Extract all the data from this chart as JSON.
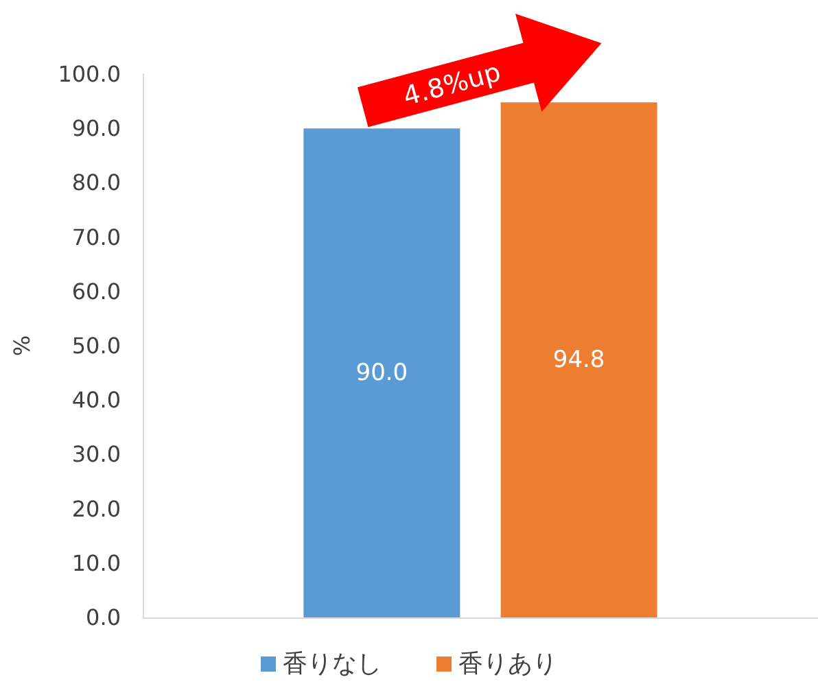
{
  "chart_data": {
    "type": "bar",
    "ylabel": "%",
    "categories": [
      null
    ],
    "series": [
      {
        "name": "香りなし",
        "color": "#5b9bd5",
        "values": [
          90.0
        ],
        "value_labels": [
          "90.0"
        ]
      },
      {
        "name": "香りあり",
        "color": "#ed7d31",
        "values": [
          94.8
        ],
        "value_labels": [
          "94.8"
        ]
      }
    ],
    "ylim": [
      0,
      100
    ],
    "yticks": [
      {
        "value": 0,
        "label": "0.0"
      },
      {
        "value": 10,
        "label": "10.0"
      },
      {
        "value": 20,
        "label": "20.0"
      },
      {
        "value": 30,
        "label": "30.0"
      },
      {
        "value": 40,
        "label": "40.0"
      },
      {
        "value": 50,
        "label": "50.0"
      },
      {
        "value": 60,
        "label": "60.0"
      },
      {
        "value": 70,
        "label": "70.0"
      },
      {
        "value": 80,
        "label": "80.0"
      },
      {
        "value": 90,
        "label": "90.0"
      },
      {
        "value": 100,
        "label": "100.0"
      }
    ],
    "annotations": [
      "4.8%up"
    ],
    "grid": false,
    "legend": "bottom"
  }
}
